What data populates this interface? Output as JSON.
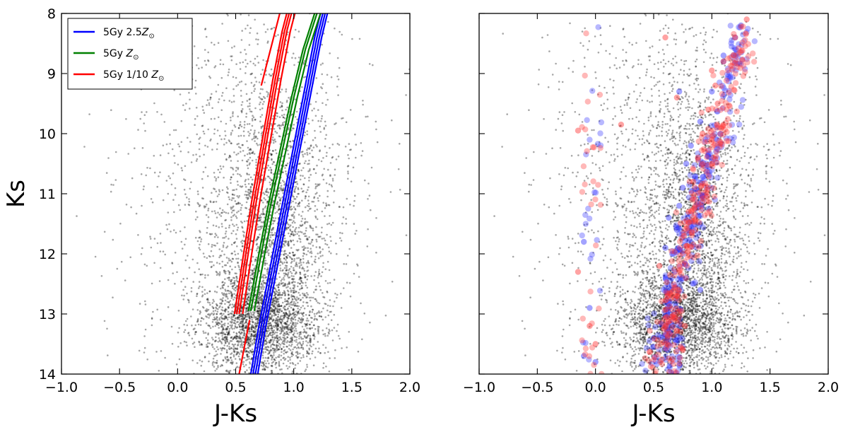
{
  "chart_data": [
    {
      "type": "scatter",
      "title": "",
      "xlabel": "J-Ks",
      "ylabel": "Ks",
      "xlim": [
        -1.0,
        2.0
      ],
      "ylim": [
        14,
        8
      ],
      "y_inverted": true,
      "xticks": [
        -1.0,
        -0.5,
        0.0,
        0.5,
        1.0,
        1.5,
        2.0
      ],
      "xtick_labels": [
        "−1.0",
        "−0.5",
        "0.0",
        "0.5",
        "1.0",
        "1.5",
        "2.0"
      ],
      "yticks": [
        8,
        9,
        10,
        11,
        12,
        13,
        14
      ],
      "ytick_labels": [
        "8",
        "9",
        "10",
        "11",
        "12",
        "13",
        "14"
      ],
      "grid": false,
      "legend_position": "top-left",
      "background_stars": {
        "color": "#000000",
        "description_source": "black point cloud",
        "clusters": [
          {
            "jk_mean": 0.7,
            "jk_sd": 0.26,
            "ks_mean": 13.15,
            "ks_sd": 0.42,
            "weight": 0.4
          },
          {
            "jk_mean": 0.85,
            "jk_sd": 0.22,
            "ks_mean": 11.5,
            "ks_sd": 1.1,
            "weight": 0.3
          },
          {
            "jk_mean": 0.6,
            "jk_sd": 0.5,
            "ks_mean": 11.0,
            "ks_sd": 2.0,
            "weight": 0.3
          }
        ]
      },
      "series": [
        {
          "name": "5Gy 2.5Z⊙",
          "legend_prefix": "5Gy 2.5",
          "color": "#0000ff",
          "type": "line",
          "points": [
            [
              0.65,
              14.0
            ],
            [
              0.72,
              13.2
            ],
            [
              0.8,
              12.4
            ],
            [
              0.9,
              11.4
            ],
            [
              1.0,
              10.4
            ],
            [
              1.1,
              9.4
            ],
            [
              1.2,
              8.4
            ],
            [
              1.25,
              8.0
            ]
          ],
          "offsets": [
            -0.02,
            0.0,
            0.02,
            0.04
          ]
        },
        {
          "name": "5Gy Z⊙",
          "legend_prefix": "5Gy ",
          "color": "#008000",
          "type": "line",
          "points": [
            [
              0.63,
              12.95
            ],
            [
              0.72,
              12.0
            ],
            [
              0.8,
              11.2
            ],
            [
              0.9,
              10.3
            ],
            [
              1.0,
              9.4
            ],
            [
              1.1,
              8.6
            ],
            [
              1.2,
              8.0
            ]
          ],
          "offsets": [
            -0.02,
            0.0,
            0.03
          ]
        },
        {
          "name": "5Gy 1/10 Z⊙",
          "legend_prefix": "5Gy 1/10 ",
          "color": "#ff0000",
          "type": "line",
          "points": [
            [
              0.51,
              13.0
            ],
            [
              0.58,
              12.1
            ],
            [
              0.66,
              11.1
            ],
            [
              0.75,
              10.1
            ],
            [
              0.84,
              9.1
            ],
            [
              0.92,
              8.3
            ],
            [
              0.96,
              8.0
            ]
          ],
          "offsets": [
            -0.02,
            0.0,
            0.02,
            0.05
          ],
          "extra_branches": [
            [
              [
                0.72,
                9.2
              ],
              [
                0.8,
                8.6
              ],
              [
                0.88,
                8.0
              ]
            ],
            [
              [
                0.53,
                14.0
              ],
              [
                0.58,
                13.5
              ],
              [
                0.62,
                13.1
              ]
            ]
          ]
        }
      ]
    },
    {
      "type": "scatter",
      "title": "",
      "xlabel": "J-Ks",
      "ylabel": "",
      "xlim": [
        -1.0,
        2.0
      ],
      "ylim": [
        14,
        8
      ],
      "y_inverted": true,
      "xticks": [
        -1.0,
        -0.5,
        0.0,
        0.5,
        1.0,
        1.5,
        2.0
      ],
      "xtick_labels": [
        "−1.0",
        "−0.5",
        "0.0",
        "0.5",
        "1.0",
        "1.5",
        "2.0"
      ],
      "grid": false,
      "background_stars": {
        "color": "#000000",
        "clusters": [
          {
            "jk_mean": 0.7,
            "jk_sd": 0.26,
            "ks_mean": 13.15,
            "ks_sd": 0.42,
            "weight": 0.4
          },
          {
            "jk_mean": 0.85,
            "jk_sd": 0.22,
            "ks_mean": 11.5,
            "ks_sd": 1.1,
            "weight": 0.3
          },
          {
            "jk_mean": 0.6,
            "jk_sd": 0.5,
            "ks_mean": 11.0,
            "ks_sd": 2.0,
            "weight": 0.3
          }
        ]
      },
      "series": [
        {
          "name": "blue model stars",
          "color": "#3333ff",
          "type": "scatter",
          "sample_points": [
            [
              0.62,
              12.9
            ],
            [
              0.65,
              12.6
            ],
            [
              0.68,
              12.3
            ],
            [
              0.66,
              12.0
            ],
            [
              0.7,
              11.6
            ],
            [
              0.72,
              11.2
            ],
            [
              0.75,
              10.9
            ],
            [
              0.78,
              10.5
            ],
            [
              0.82,
              10.2
            ],
            [
              0.9,
              9.8
            ],
            [
              1.0,
              9.3
            ],
            [
              1.1,
              8.8
            ],
            [
              1.2,
              8.4
            ],
            [
              0.6,
              11.9
            ],
            [
              0.63,
              11.4
            ],
            [
              -0.1,
              11.8
            ],
            [
              -0.05,
              12.9
            ],
            [
              0.0,
              13.8
            ],
            [
              -0.1,
              13.7
            ],
            [
              0.5,
              13.4
            ],
            [
              0.62,
              13.6
            ],
            [
              0.9,
              12.6
            ],
            [
              0.72,
              9.3
            ],
            [
              1.25,
              8.2
            ],
            [
              1.1,
              8.7
            ]
          ]
        },
        {
          "name": "red model stars",
          "color": "#ff3333",
          "type": "scatter",
          "sample_points": [
            [
              0.7,
              12.7
            ],
            [
              0.72,
              12.2
            ],
            [
              0.76,
              11.7
            ],
            [
              0.8,
              11.3
            ],
            [
              0.84,
              10.8
            ],
            [
              0.88,
              10.4
            ],
            [
              0.92,
              10.0
            ],
            [
              0.97,
              9.6
            ],
            [
              1.03,
              9.2
            ],
            [
              1.1,
              8.8
            ],
            [
              1.2,
              8.4
            ],
            [
              1.3,
              8.1
            ],
            [
              -0.15,
              12.3
            ],
            [
              -0.15,
              9.95
            ],
            [
              0.22,
              9.85
            ],
            [
              -0.05,
              13.2
            ],
            [
              0.0,
              13.5
            ],
            [
              0.55,
              12.2
            ],
            [
              0.7,
              9.4
            ],
            [
              1.0,
              10.1
            ],
            [
              1.05,
              9.5
            ],
            [
              0.77,
              13.2
            ],
            [
              0.75,
              13.6
            ],
            [
              0.6,
              8.4
            ],
            [
              1.0,
              8.95
            ]
          ]
        }
      ]
    }
  ]
}
